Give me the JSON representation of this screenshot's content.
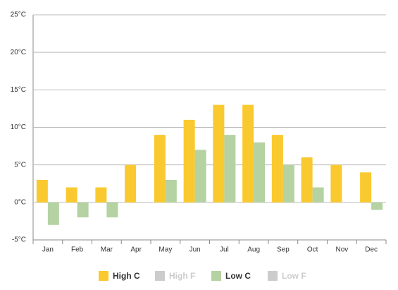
{
  "chart_data": {
    "type": "bar",
    "categories": [
      "Jan",
      "Feb",
      "Mar",
      "Apr",
      "May",
      "Jun",
      "Jul",
      "Aug",
      "Sep",
      "Oct",
      "Nov",
      "Dec"
    ],
    "series": [
      {
        "name": "High C",
        "color": "#f9c92f",
        "values": [
          3,
          2,
          2,
          5,
          9,
          11,
          13,
          13,
          9,
          6,
          5,
          4
        ]
      },
      {
        "name": "High F",
        "color": "#cccccc",
        "visible": false
      },
      {
        "name": "Low C",
        "color": "#b4d2a2",
        "values": [
          -3,
          -2,
          -2,
          0,
          3,
          7,
          9,
          8,
          5,
          2,
          0,
          -1
        ]
      },
      {
        "name": "Low F",
        "color": "#cccccc",
        "visible": false
      }
    ],
    "ylim": [
      -5,
      25
    ],
    "yticks": [
      {
        "value": -5,
        "label": "-5°C"
      },
      {
        "value": 0,
        "label": "0°C"
      },
      {
        "value": 5,
        "label": "5°C"
      },
      {
        "value": 10,
        "label": "10°C"
      },
      {
        "value": 15,
        "label": "15°C"
      },
      {
        "value": 20,
        "label": "20°C"
      },
      {
        "value": 25,
        "label": "25°C"
      }
    ],
    "grid": true
  }
}
